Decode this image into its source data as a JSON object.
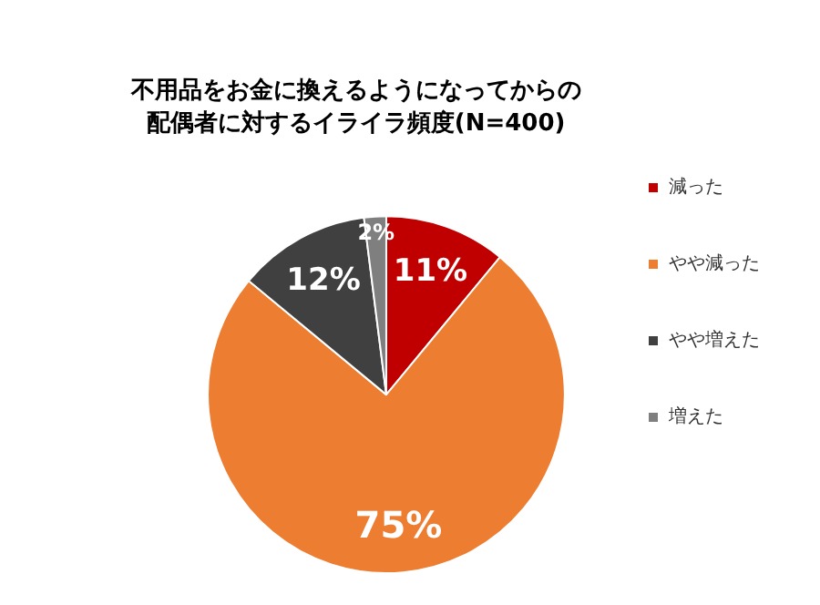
{
  "chart_data": {
    "type": "pie",
    "title": "不用品をお金に換えるようになってからの配偶者に対するイライラ頻度(N=400)",
    "categories": [
      "減った",
      "やや減った",
      "やや増えた",
      "増えた"
    ],
    "values": [
      11,
      75,
      12,
      2
    ],
    "colors": [
      "#c00000",
      "#ed7d31",
      "#404040",
      "#7f7f7f"
    ],
    "value_labels": [
      "11%",
      "75%",
      "12%",
      "2%"
    ],
    "legend": "right"
  }
}
